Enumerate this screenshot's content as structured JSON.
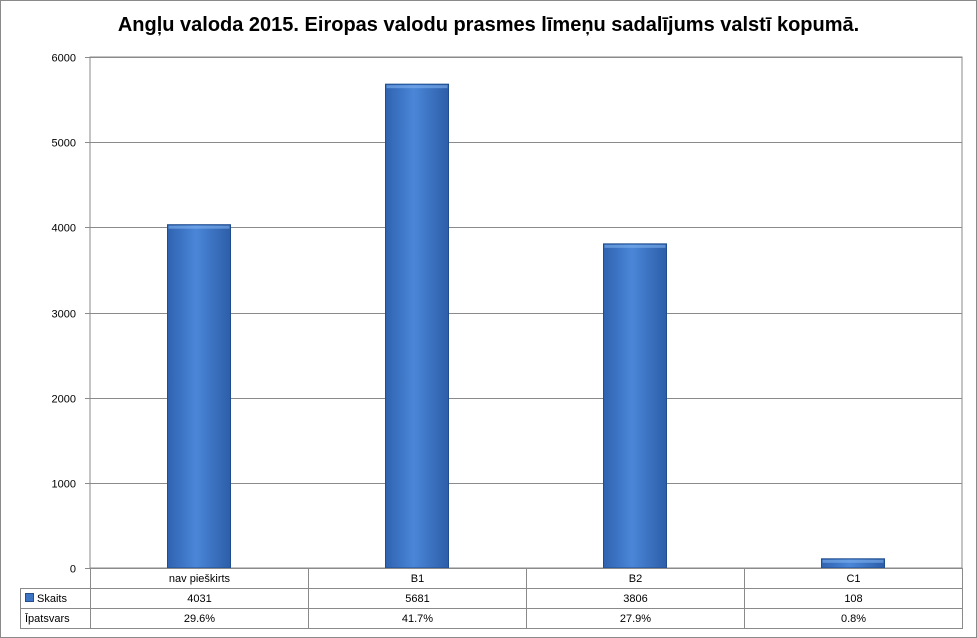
{
  "chart_data": {
    "type": "bar",
    "title": "Angļu valoda 2015. Eiropas valodu prasmes līmeņu sadalījums valstī kopumā.",
    "categories": [
      "nav pieškirts",
      "B1",
      "B2",
      "C1"
    ],
    "series": [
      {
        "name": "Skaits",
        "values": [
          4031,
          5681,
          3806,
          108
        ],
        "color": "#3d74c4"
      }
    ],
    "table_rows": [
      {
        "label": "Skaits",
        "values": [
          "4031",
          "5681",
          "3806",
          "108"
        ],
        "legend_key": true
      },
      {
        "label": "Īpatsvars",
        "values": [
          "29.6%",
          "41.7%",
          "27.9%",
          "0.8%"
        ],
        "legend_key": false
      }
    ],
    "ylim": [
      0,
      6000
    ],
    "yticks": [
      0,
      1000,
      2000,
      3000,
      4000,
      5000,
      6000
    ],
    "grid": true,
    "legend": "data-table"
  }
}
